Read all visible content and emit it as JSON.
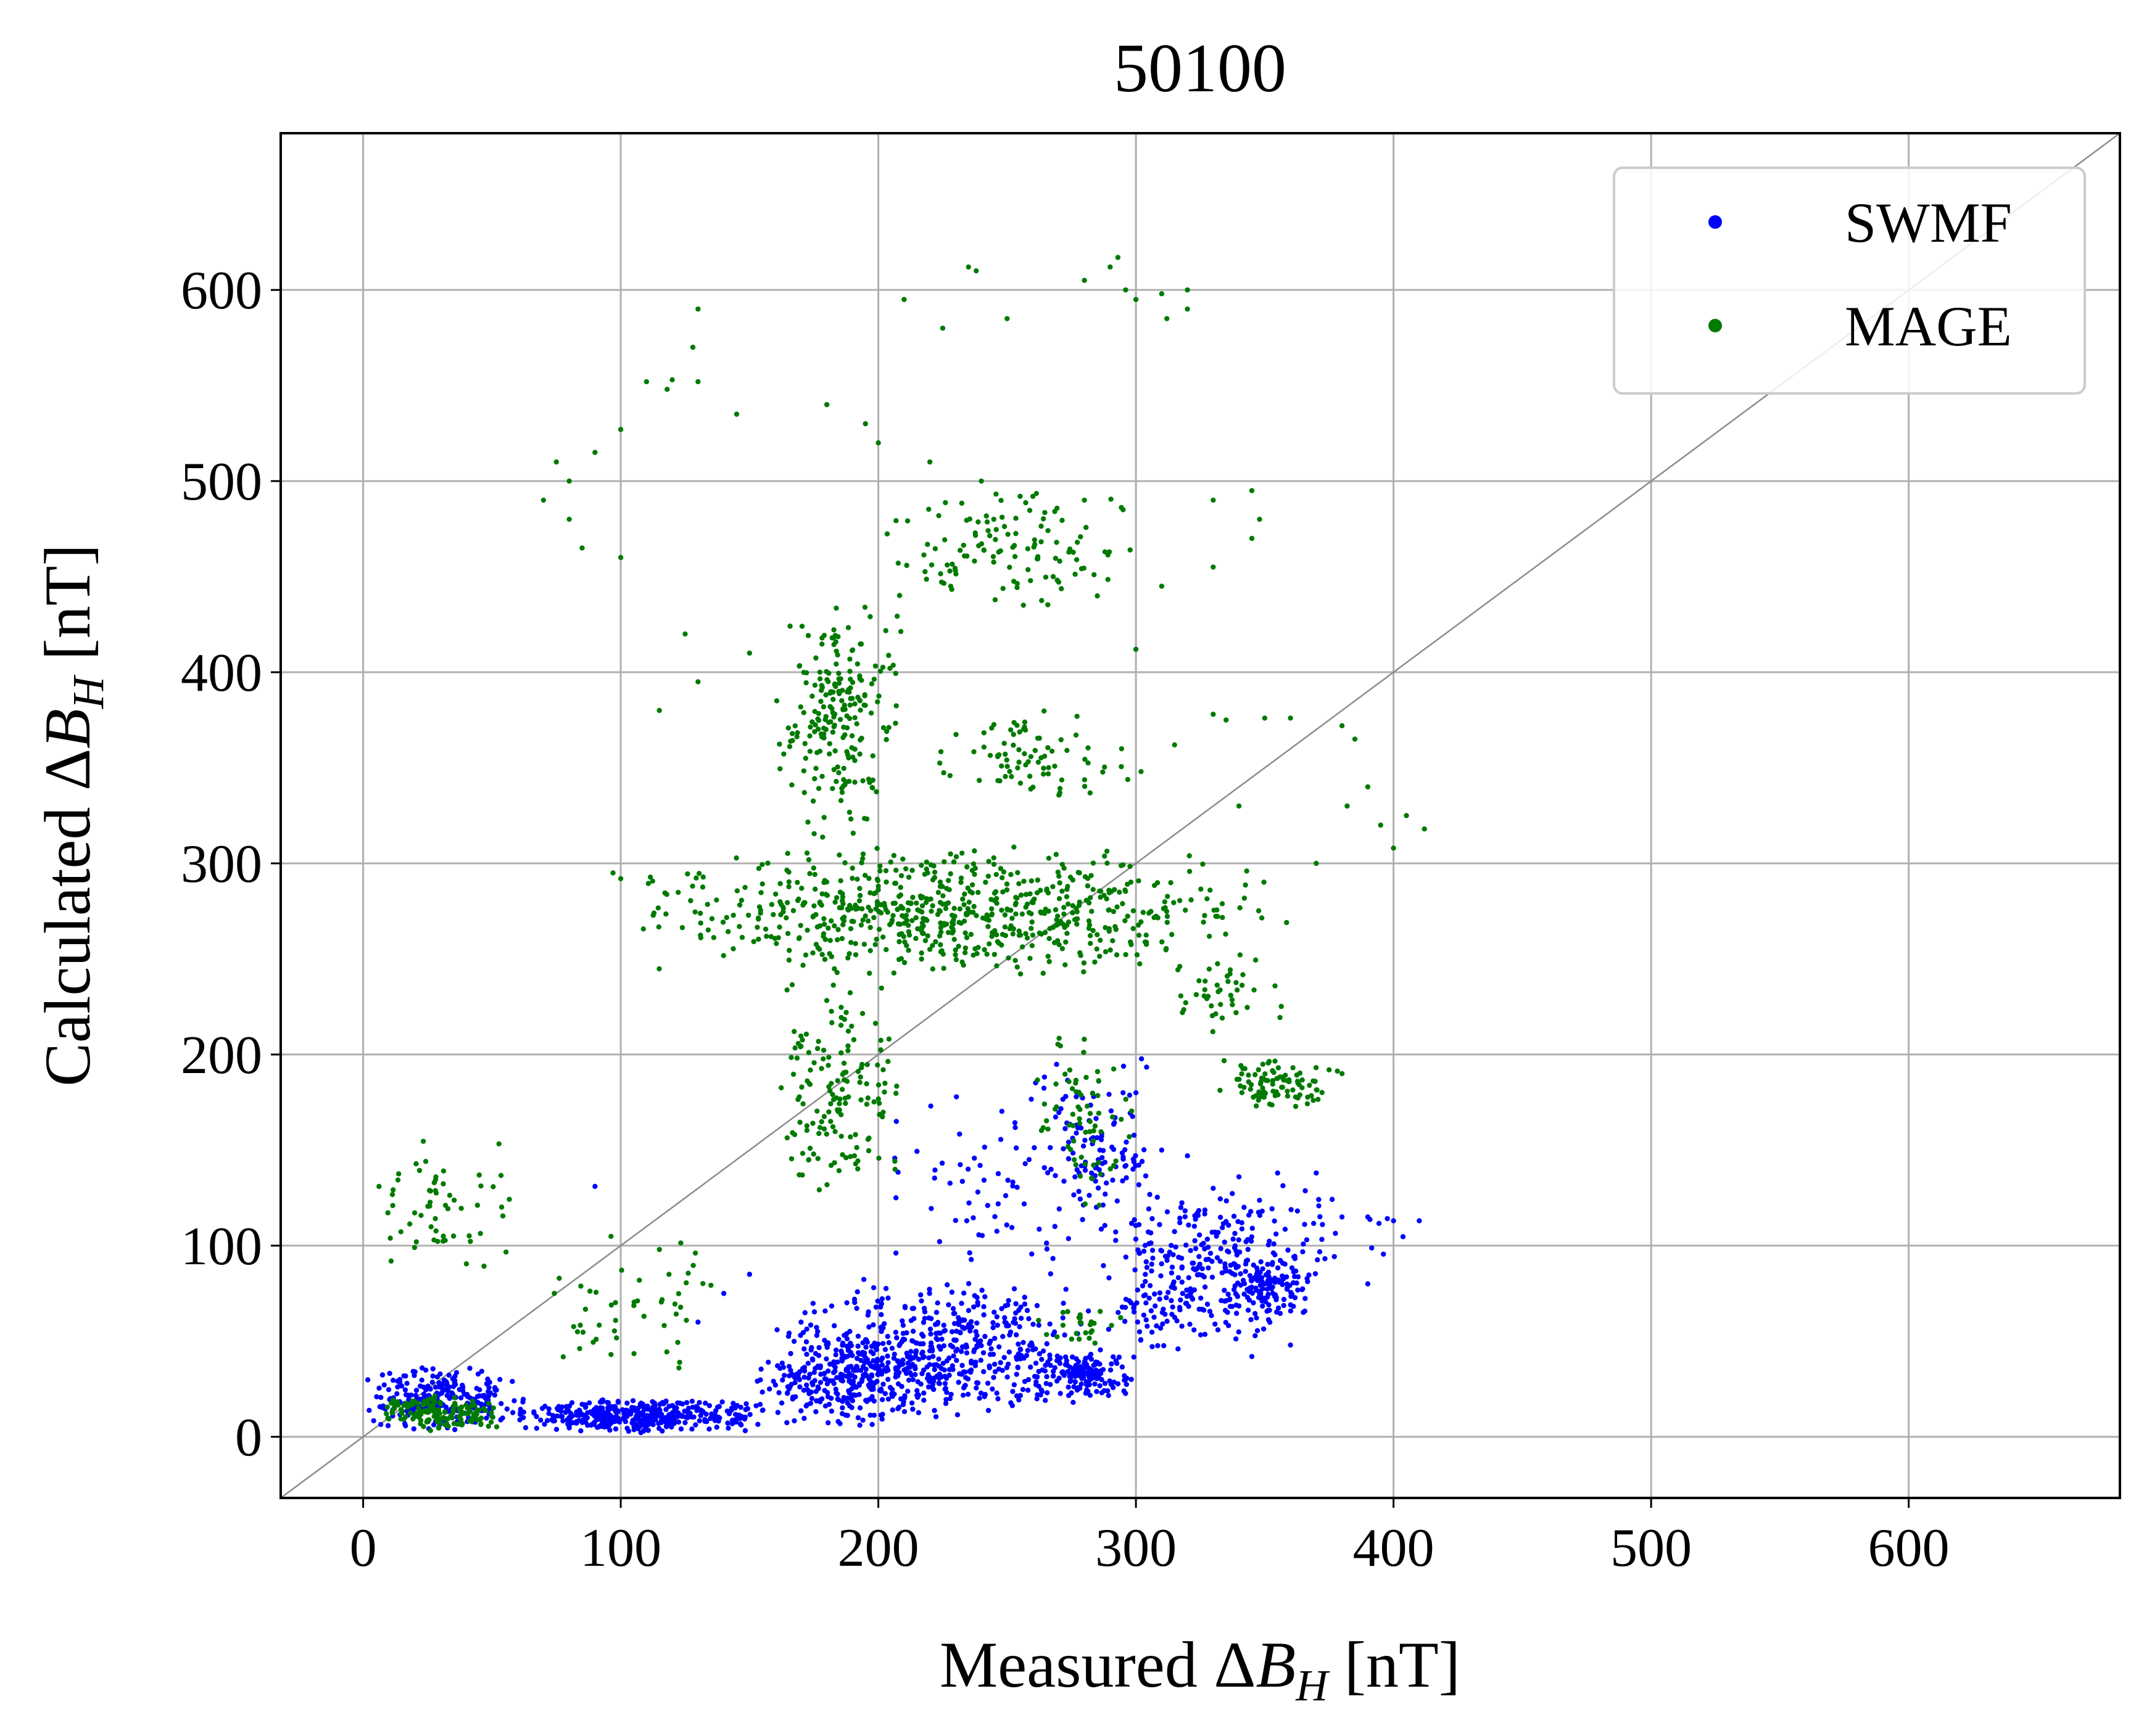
{
  "chart_data": {
    "type": "scatter",
    "title": "50100",
    "xlabel": {
      "prefix": "Measured ",
      "delta": "Δ",
      "var": "B",
      "sub": "H",
      "suffix": " [nT]"
    },
    "ylabel": {
      "prefix": "Calculated ",
      "delta": "Δ",
      "var": "B",
      "sub": "H",
      "suffix": " [nT]"
    },
    "xlim": [
      -32,
      682
    ],
    "ylim": [
      -32,
      682
    ],
    "xticks": [
      0,
      100,
      200,
      300,
      400,
      500,
      600
    ],
    "yticks": [
      0,
      100,
      200,
      300,
      400,
      500,
      600
    ],
    "xtick_labels": [
      "0",
      "100",
      "200",
      "300",
      "400",
      "500",
      "600"
    ],
    "ytick_labels": [
      "0",
      "100",
      "200",
      "300",
      "400",
      "500",
      "600"
    ],
    "grid": true,
    "reference_line": "y = x",
    "legend_position": "top-right",
    "series": [
      {
        "name": "SWMF",
        "color": "#0000ff",
        "clusters": [
          {
            "x": [
              0,
              60
            ],
            "y": [
              2,
              38
            ],
            "n": 230
          },
          {
            "x": [
              50,
              160
            ],
            "y": [
              2,
              20
            ],
            "n": 420
          },
          {
            "x": [
              150,
              230
            ],
            "y": [
              2,
              60
            ],
            "n": 360
          },
          {
            "x": [
              170,
              290
            ],
            "y": [
              10,
              85
            ],
            "n": 420
          },
          {
            "x": [
              260,
              300
            ],
            "y": [
              20,
              45
            ],
            "n": 140
          },
          {
            "x": [
              280,
              370
            ],
            "y": [
              40,
              130
            ],
            "n": 260
          },
          {
            "x": [
              330,
              370
            ],
            "y": [
              60,
              95
            ],
            "n": 120
          },
          {
            "x": [
              260,
              310
            ],
            "y": [
              100,
              200
            ],
            "n": 110
          },
          {
            "x": [
              200,
              300
            ],
            "y": [
              80,
              190
            ],
            "n": 70
          },
          {
            "x": [
              300,
              410
            ],
            "y": [
              80,
              135
            ],
            "n": 60
          }
        ],
        "points": [
          [
            90,
            131
          ],
          [
            207,
            165
          ],
          [
            410,
            113
          ],
          [
            400,
            113
          ],
          [
            390,
            115
          ],
          [
            380,
            115
          ],
          [
            370,
            138
          ],
          [
            355,
            138
          ],
          [
            340,
            136
          ],
          [
            330,
            130
          ],
          [
            320,
            147
          ],
          [
            310,
            150
          ],
          [
            300,
            180
          ],
          [
            295,
            180
          ],
          [
            390,
            80
          ],
          [
            360,
            48
          ],
          [
            345,
            42
          ],
          [
            220,
            45
          ],
          [
            170,
            60
          ],
          [
            150,
            85
          ],
          [
            140,
            75
          ],
          [
            130,
            60
          ]
        ]
      },
      {
        "name": "MAGE",
        "color": "#007a00",
        "clusters": [
          {
            "x": [
              5,
              55
            ],
            "y": [
              3,
              22
            ],
            "n": 160
          },
          {
            "x": [
              0,
              60
            ],
            "y": [
              85,
              160
            ],
            "n": 60
          },
          {
            "x": [
              100,
              360
            ],
            "y": [
              240,
              310
            ],
            "n": 700
          },
          {
            "x": [
              160,
              210
            ],
            "y": [
              310,
              440
            ],
            "n": 220
          },
          {
            "x": [
              160,
              210
            ],
            "y": [
              120,
              240
            ],
            "n": 150
          },
          {
            "x": [
              200,
              300
            ],
            "y": [
              430,
              500
            ],
            "n": 120
          },
          {
            "x": [
              330,
              380
            ],
            "y": [
              170,
              200
            ],
            "n": 90
          },
          {
            "x": [
              260,
              300
            ],
            "y": [
              110,
              220
            ],
            "n": 70
          },
          {
            "x": [
              220,
              300
            ],
            "y": [
              330,
              380
            ],
            "n": 80
          },
          {
            "x": [
              310,
              360
            ],
            "y": [
              210,
              250
            ],
            "n": 40
          },
          {
            "x": [
              70,
              140
            ],
            "y": [
              30,
              110
            ],
            "n": 50
          },
          {
            "x": [
              260,
              300
            ],
            "y": [
              45,
              70
            ],
            "n": 25
          }
        ],
        "points": [
          [
            293,
            617
          ],
          [
            290,
            612
          ],
          [
            235,
            612
          ],
          [
            238,
            610
          ],
          [
            280,
            605
          ],
          [
            296,
            600
          ],
          [
            300,
            595
          ],
          [
            310,
            598
          ],
          [
            320,
            590
          ],
          [
            312,
            585
          ],
          [
            320,
            600
          ],
          [
            210,
            595
          ],
          [
            225,
            580
          ],
          [
            250,
            585
          ],
          [
            130,
            590
          ],
          [
            128,
            570
          ],
          [
            130,
            552
          ],
          [
            120,
            553
          ],
          [
            118,
            548
          ],
          [
            110,
            552
          ],
          [
            100,
            527
          ],
          [
            90,
            515
          ],
          [
            80,
            500
          ],
          [
            75,
            510
          ],
          [
            70,
            490
          ],
          [
            80,
            480
          ],
          [
            85,
            465
          ],
          [
            100,
            460
          ],
          [
            145,
            535
          ],
          [
            180,
            540
          ],
          [
            195,
            530
          ],
          [
            200,
            520
          ],
          [
            220,
            510
          ],
          [
            240,
            500
          ],
          [
            260,
            492
          ],
          [
            280,
            490
          ],
          [
            295,
            485
          ],
          [
            330,
            490
          ],
          [
            345,
            495
          ],
          [
            348,
            480
          ],
          [
            345,
            470
          ],
          [
            330,
            455
          ],
          [
            310,
            445
          ],
          [
            300,
            412
          ],
          [
            330,
            378
          ],
          [
            335,
            375
          ],
          [
            350,
            376
          ],
          [
            360,
            376
          ],
          [
            380,
            372
          ],
          [
            385,
            365
          ],
          [
            390,
            340
          ],
          [
            382,
            330
          ],
          [
            395,
            320
          ],
          [
            405,
            325
          ],
          [
            412,
            318
          ],
          [
            400,
            308
          ],
          [
            370,
            300
          ],
          [
            343,
            296
          ],
          [
            340,
            330
          ],
          [
            315,
            362
          ],
          [
            302,
            348
          ],
          [
            375,
            192
          ],
          [
            380,
            190
          ],
          [
            100,
            292
          ],
          [
            97,
            295
          ],
          [
            115,
            380
          ],
          [
            125,
            420
          ],
          [
            130,
            395
          ],
          [
            150,
            410
          ]
        ]
      }
    ]
  }
}
